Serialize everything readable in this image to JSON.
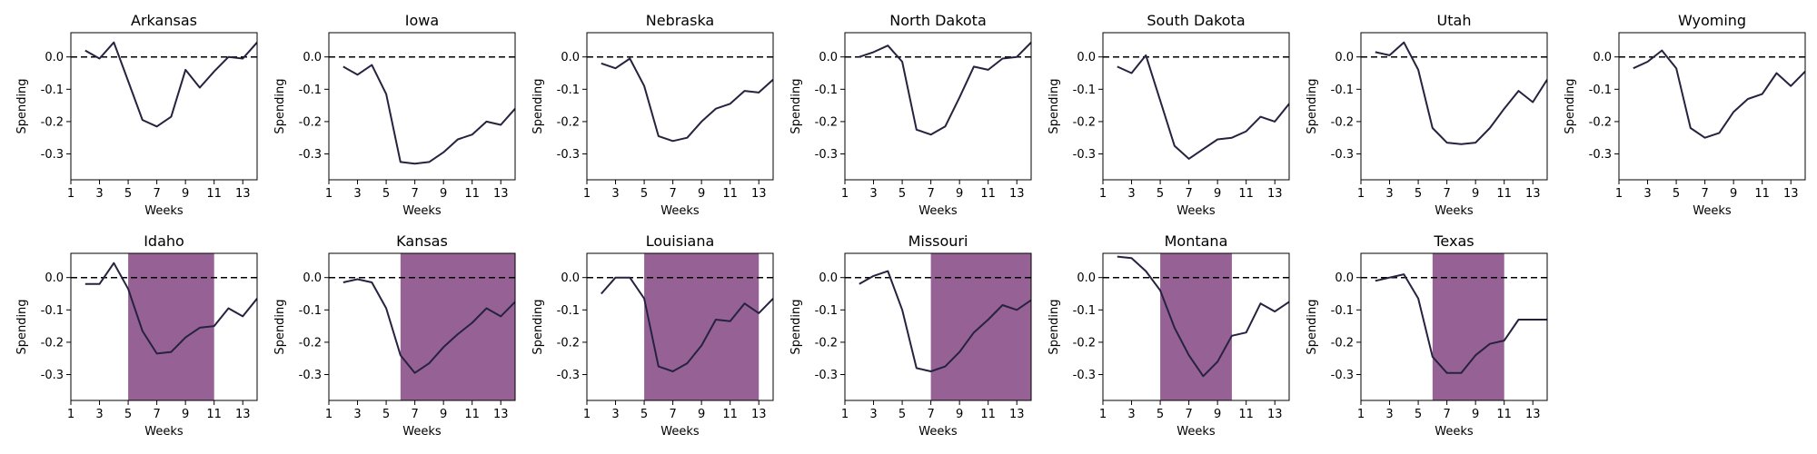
{
  "chart_data": [
    {
      "type": "line",
      "title": "Arkansas",
      "xlabel": "Weeks",
      "ylabel": "Spending",
      "xlim": [
        1,
        14
      ],
      "ylim": [
        -0.38,
        0.075
      ],
      "xticks": [
        "1",
        "3",
        "5",
        "7",
        "9",
        "11",
        "13"
      ],
      "yticks": [
        "0.0",
        "-0.1",
        "-0.2",
        "-0.3"
      ],
      "reference_line": 0,
      "x": [
        2,
        3,
        4,
        5,
        6,
        7,
        8,
        9,
        10,
        11,
        12,
        13,
        14
      ],
      "y": [
        0.02,
        -0.005,
        0.045,
        -0.075,
        -0.195,
        -0.215,
        -0.185,
        -0.04,
        -0.095,
        -0.045,
        0.0,
        -0.005,
        0.045
      ],
      "shade": null
    },
    {
      "type": "line",
      "title": "Iowa",
      "xlabel": "Weeks",
      "ylabel": "Spending",
      "xlim": [
        1,
        14
      ],
      "ylim": [
        -0.38,
        0.075
      ],
      "xticks": [
        "1",
        "3",
        "5",
        "7",
        "9",
        "11",
        "13"
      ],
      "yticks": [
        "0.0",
        "-0.1",
        "-0.2",
        "-0.3"
      ],
      "reference_line": 0,
      "x": [
        2,
        3,
        4,
        5,
        6,
        7,
        8,
        9,
        10,
        11,
        12,
        13,
        14
      ],
      "y": [
        -0.03,
        -0.055,
        -0.025,
        -0.115,
        -0.325,
        -0.33,
        -0.325,
        -0.295,
        -0.255,
        -0.24,
        -0.2,
        -0.21,
        -0.16
      ],
      "shade": null
    },
    {
      "type": "line",
      "title": "Nebraska",
      "xlabel": "Weeks",
      "ylabel": "Spending",
      "xlim": [
        1,
        14
      ],
      "ylim": [
        -0.38,
        0.075
      ],
      "xticks": [
        "1",
        "3",
        "5",
        "7",
        "9",
        "11",
        "13"
      ],
      "yticks": [
        "0.0",
        "-0.1",
        "-0.2",
        "-0.3"
      ],
      "reference_line": 0,
      "x": [
        2,
        3,
        4,
        5,
        6,
        7,
        8,
        9,
        10,
        11,
        12,
        13,
        14
      ],
      "y": [
        -0.02,
        -0.035,
        -0.005,
        -0.09,
        -0.245,
        -0.26,
        -0.25,
        -0.2,
        -0.16,
        -0.145,
        -0.105,
        -0.11,
        -0.07
      ],
      "shade": null
    },
    {
      "type": "line",
      "title": "North Dakota",
      "xlabel": "Weeks",
      "ylabel": "Spending",
      "xlim": [
        1,
        14
      ],
      "ylim": [
        -0.38,
        0.075
      ],
      "xticks": [
        "1",
        "3",
        "5",
        "7",
        "9",
        "11",
        "13"
      ],
      "yticks": [
        "0.0",
        "-0.1",
        "-0.2",
        "-0.3"
      ],
      "reference_line": 0,
      "x": [
        2,
        3,
        4,
        5,
        6,
        7,
        8,
        9,
        10,
        11,
        12,
        13,
        14
      ],
      "y": [
        0.0,
        0.015,
        0.035,
        -0.015,
        -0.225,
        -0.24,
        -0.215,
        -0.125,
        -0.03,
        -0.04,
        -0.005,
        0.0,
        0.045
      ],
      "shade": null
    },
    {
      "type": "line",
      "title": "South Dakota",
      "xlabel": "Weeks",
      "ylabel": "Spending",
      "xlim": [
        1,
        14
      ],
      "ylim": [
        -0.38,
        0.075
      ],
      "xticks": [
        "1",
        "3",
        "5",
        "7",
        "9",
        "11",
        "13"
      ],
      "yticks": [
        "0.0",
        "-0.1",
        "-0.2",
        "-0.3"
      ],
      "reference_line": 0,
      "x": [
        2,
        3,
        4,
        5,
        6,
        7,
        8,
        9,
        10,
        11,
        12,
        13,
        14
      ],
      "y": [
        -0.03,
        -0.05,
        0.005,
        -0.135,
        -0.275,
        -0.315,
        -0.285,
        -0.255,
        -0.25,
        -0.23,
        -0.185,
        -0.2,
        -0.145
      ],
      "shade": null
    },
    {
      "type": "line",
      "title": "Utah",
      "xlabel": "Weeks",
      "ylabel": "Spending",
      "xlim": [
        1,
        14
      ],
      "ylim": [
        -0.38,
        0.075
      ],
      "xticks": [
        "1",
        "3",
        "5",
        "7",
        "9",
        "11",
        "13"
      ],
      "yticks": [
        "0.0",
        "-0.1",
        "-0.2",
        "-0.3"
      ],
      "reference_line": 0,
      "x": [
        2,
        3,
        4,
        5,
        6,
        7,
        8,
        9,
        10,
        11,
        12,
        13,
        14
      ],
      "y": [
        0.015,
        0.005,
        0.045,
        -0.04,
        -0.22,
        -0.265,
        -0.27,
        -0.265,
        -0.22,
        -0.16,
        -0.105,
        -0.14,
        -0.07
      ],
      "shade": null
    },
    {
      "type": "line",
      "title": "Wyoming",
      "xlabel": "Weeks",
      "ylabel": "Spending",
      "xlim": [
        1,
        14
      ],
      "ylim": [
        -0.38,
        0.075
      ],
      "xticks": [
        "1",
        "3",
        "5",
        "7",
        "9",
        "11",
        "13"
      ],
      "yticks": [
        "0.0",
        "-0.1",
        "-0.2",
        "-0.3"
      ],
      "reference_line": 0,
      "x": [
        2,
        3,
        4,
        5,
        6,
        7,
        8,
        9,
        10,
        11,
        12,
        13,
        14
      ],
      "y": [
        -0.035,
        -0.015,
        0.02,
        -0.035,
        -0.22,
        -0.25,
        -0.235,
        -0.17,
        -0.13,
        -0.115,
        -0.05,
        -0.09,
        -0.045
      ],
      "shade": null
    },
    {
      "type": "line",
      "title": "Idaho",
      "xlabel": "Weeks",
      "ylabel": "Spending",
      "xlim": [
        1,
        14
      ],
      "ylim": [
        -0.38,
        0.075
      ],
      "xticks": [
        "1",
        "3",
        "5",
        "7",
        "9",
        "11",
        "13"
      ],
      "yticks": [
        "0.0",
        "-0.1",
        "-0.2",
        "-0.3"
      ],
      "reference_line": 0,
      "x": [
        2,
        3,
        4,
        5,
        6,
        7,
        8,
        9,
        10,
        11,
        12,
        13,
        14
      ],
      "y": [
        -0.02,
        -0.02,
        0.045,
        -0.035,
        -0.165,
        -0.235,
        -0.23,
        -0.185,
        -0.155,
        -0.15,
        -0.095,
        -0.12,
        -0.065
      ],
      "shade": [
        5,
        11
      ]
    },
    {
      "type": "line",
      "title": "Kansas",
      "xlabel": "Weeks",
      "ylabel": "Spending",
      "xlim": [
        1,
        14
      ],
      "ylim": [
        -0.38,
        0.075
      ],
      "xticks": [
        "1",
        "3",
        "5",
        "7",
        "9",
        "11",
        "13"
      ],
      "yticks": [
        "0.0",
        "-0.1",
        "-0.2",
        "-0.3"
      ],
      "reference_line": 0,
      "x": [
        2,
        3,
        4,
        5,
        6,
        7,
        8,
        9,
        10,
        11,
        12,
        13,
        14
      ],
      "y": [
        -0.015,
        -0.005,
        -0.015,
        -0.095,
        -0.24,
        -0.295,
        -0.265,
        -0.215,
        -0.175,
        -0.14,
        -0.095,
        -0.12,
        -0.075
      ],
      "shade": [
        6,
        14
      ]
    },
    {
      "type": "line",
      "title": "Louisiana",
      "xlabel": "Weeks",
      "ylabel": "Spending",
      "xlim": [
        1,
        14
      ],
      "ylim": [
        -0.38,
        0.075
      ],
      "xticks": [
        "1",
        "3",
        "5",
        "7",
        "9",
        "11",
        "13"
      ],
      "yticks": [
        "0.0",
        "-0.1",
        "-0.2",
        "-0.3"
      ],
      "reference_line": 0,
      "x": [
        2,
        3,
        4,
        5,
        6,
        7,
        8,
        9,
        10,
        11,
        12,
        13,
        14
      ],
      "y": [
        -0.05,
        0.0,
        0.0,
        -0.065,
        -0.275,
        -0.29,
        -0.265,
        -0.21,
        -0.13,
        -0.135,
        -0.08,
        -0.11,
        -0.065
      ],
      "shade": [
        5,
        13
      ]
    },
    {
      "type": "line",
      "title": "Missouri",
      "xlabel": "Weeks",
      "ylabel": "Spending",
      "xlim": [
        1,
        14
      ],
      "ylim": [
        -0.38,
        0.075
      ],
      "xticks": [
        "1",
        "3",
        "5",
        "7",
        "9",
        "11",
        "13"
      ],
      "yticks": [
        "0.0",
        "-0.1",
        "-0.2",
        "-0.3"
      ],
      "reference_line": 0,
      "x": [
        2,
        3,
        4,
        5,
        6,
        7,
        8,
        9,
        10,
        11,
        12,
        13,
        14
      ],
      "y": [
        -0.02,
        0.005,
        0.02,
        -0.1,
        -0.28,
        -0.29,
        -0.275,
        -0.23,
        -0.17,
        -0.13,
        -0.085,
        -0.1,
        -0.07
      ],
      "shade": [
        7,
        14
      ]
    },
    {
      "type": "line",
      "title": "Montana",
      "xlabel": "Weeks",
      "ylabel": "Spending",
      "xlim": [
        1,
        14
      ],
      "ylim": [
        -0.38,
        0.075
      ],
      "xticks": [
        "1",
        "3",
        "5",
        "7",
        "9",
        "11",
        "13"
      ],
      "yticks": [
        "0.0",
        "-0.1",
        "-0.2",
        "-0.3"
      ],
      "reference_line": 0,
      "x": [
        2,
        3,
        4,
        5,
        6,
        7,
        8,
        9,
        10,
        11,
        12,
        13,
        14
      ],
      "y": [
        0.065,
        0.06,
        0.02,
        -0.04,
        -0.155,
        -0.24,
        -0.305,
        -0.26,
        -0.18,
        -0.17,
        -0.08,
        -0.105,
        -0.075
      ],
      "shade": [
        5,
        10
      ]
    },
    {
      "type": "line",
      "title": "Texas",
      "xlabel": "Weeks",
      "ylabel": "Spending",
      "xlim": [
        1,
        14
      ],
      "ylim": [
        -0.38,
        0.075
      ],
      "xticks": [
        "1",
        "3",
        "5",
        "7",
        "9",
        "11",
        "13"
      ],
      "yticks": [
        "0.0",
        "-0.1",
        "-0.2",
        "-0.3"
      ],
      "reference_line": 0,
      "x": [
        2,
        3,
        4,
        5,
        6,
        7,
        8,
        9,
        10,
        11,
        12,
        13,
        14
      ],
      "y": [
        -0.01,
        0.0,
        0.01,
        -0.065,
        -0.245,
        -0.295,
        -0.295,
        -0.24,
        -0.205,
        -0.195,
        -0.13,
        -0.13,
        -0.13
      ],
      "shade": [
        6,
        11
      ]
    }
  ],
  "colors": {
    "line": "#26223f",
    "shade": "#8b5189",
    "reference": "#000000",
    "axes": "#000000"
  }
}
